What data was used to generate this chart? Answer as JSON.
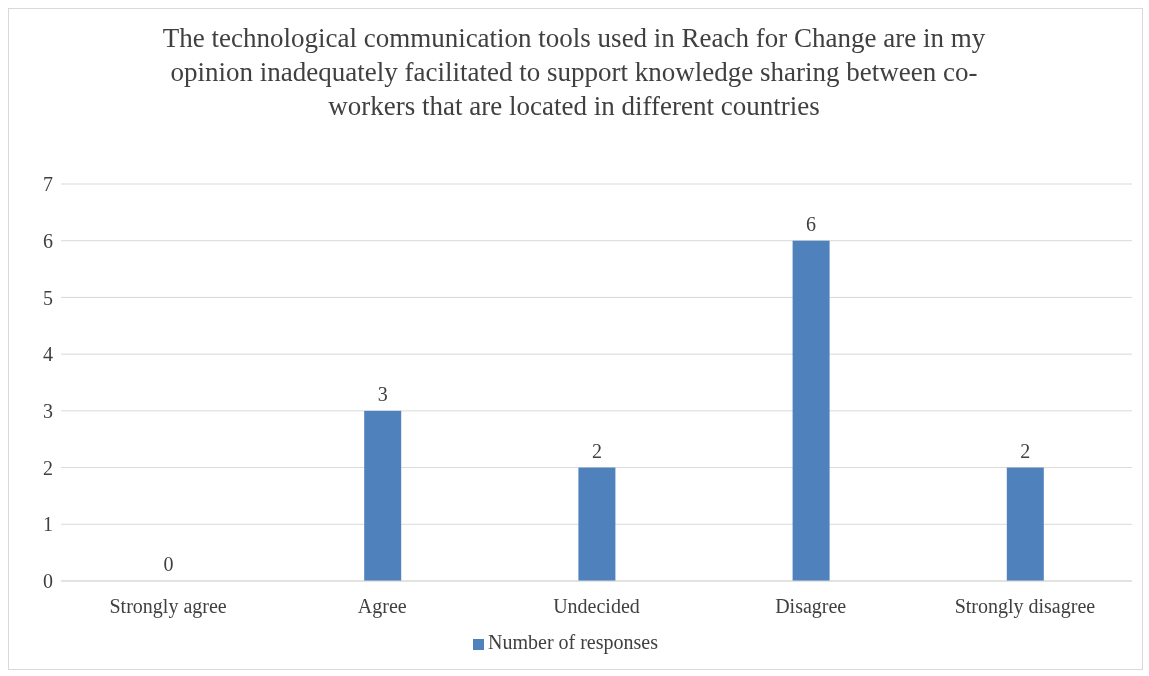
{
  "chart_data": {
    "type": "bar",
    "title": "The technological communication tools used in Reach for Change are in my opinion inadequately facilitated to support knowledge sharing between co-workers that are located in different countries",
    "categories": [
      "Strongly agree",
      "Agree",
      "Undecided",
      "Disagree",
      "Strongly disagree"
    ],
    "series": [
      {
        "name": "Number of responses",
        "color": "#4f81bd",
        "values": [
          0,
          3,
          2,
          6,
          2
        ]
      }
    ],
    "ylim": [
      0,
      7
    ],
    "yticks": [
      0,
      1,
      2,
      3,
      4,
      5,
      6,
      7
    ],
    "grid": "y",
    "legend": "bottom",
    "data_labels": true
  }
}
